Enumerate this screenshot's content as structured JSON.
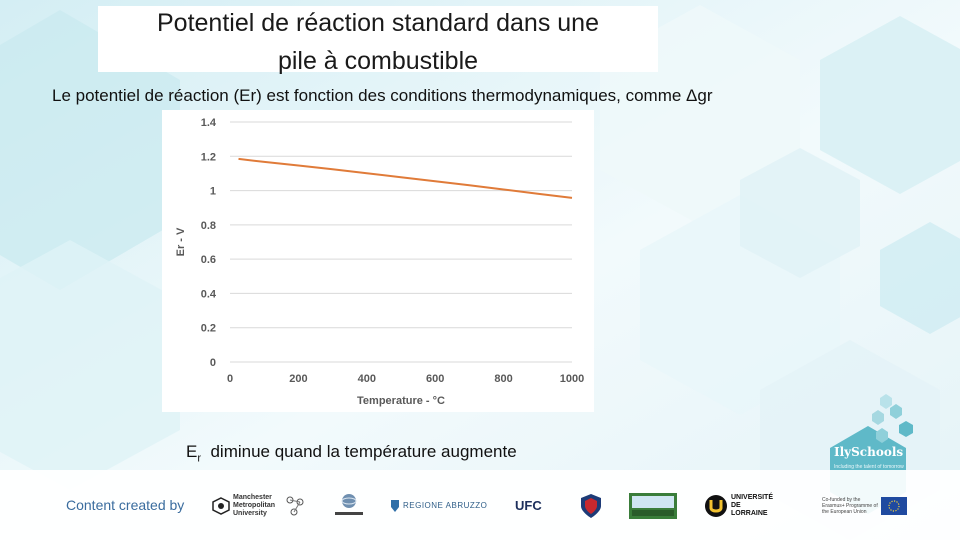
{
  "slide": {
    "title_line1": "Potentiel de réaction standard dans une",
    "title_line2": "pile à combustible",
    "subtitle": "Le potentiel de réaction (Er) est fonction des conditions thermodynamiques, comme Δgr",
    "caption_main": "E",
    "caption_sub": "r",
    "caption_rest": "diminue quand la température augmente",
    "credit": "Content created by"
  },
  "logos": {
    "manchester": "Manchester Metropolitan University",
    "regione": "REGIONE ABRUZZO",
    "ufc": "UFC",
    "lorraine": "UNIVERSITÉ DE LORRAINE",
    "ilyschools_name": "IlySchools",
    "ilyschools_tagline": "Including the talent of tomorrow",
    "eu_text": "Co-funded by the Erasmus+ Programme of the European Union"
  },
  "colors": {
    "line": "#e07b39",
    "grid": "#d9d9d9",
    "axis_text": "#595959",
    "hex_light": "#e3f4f7",
    "hex_mid": "#cdeaf0",
    "ily_teal": "#5fb9c8"
  },
  "chart_data": {
    "type": "line",
    "title": "",
    "xlabel": "Temperature - °C",
    "ylabel": "Er - V",
    "x": [
      25,
      100,
      200,
      300,
      400,
      500,
      600,
      700,
      800,
      900,
      1000
    ],
    "y": [
      1.185,
      1.167,
      1.146,
      1.124,
      1.101,
      1.078,
      1.054,
      1.031,
      1.006,
      0.982,
      0.957
    ],
    "xlim": [
      0,
      1000
    ],
    "ylim": [
      0,
      1.4
    ],
    "xticks": [
      0,
      200,
      400,
      600,
      800,
      1000
    ],
    "yticks": [
      0,
      0.2,
      0.4,
      0.6,
      0.8,
      1,
      1.2,
      1.4
    ],
    "grid": "horizontal",
    "legend": "none"
  }
}
